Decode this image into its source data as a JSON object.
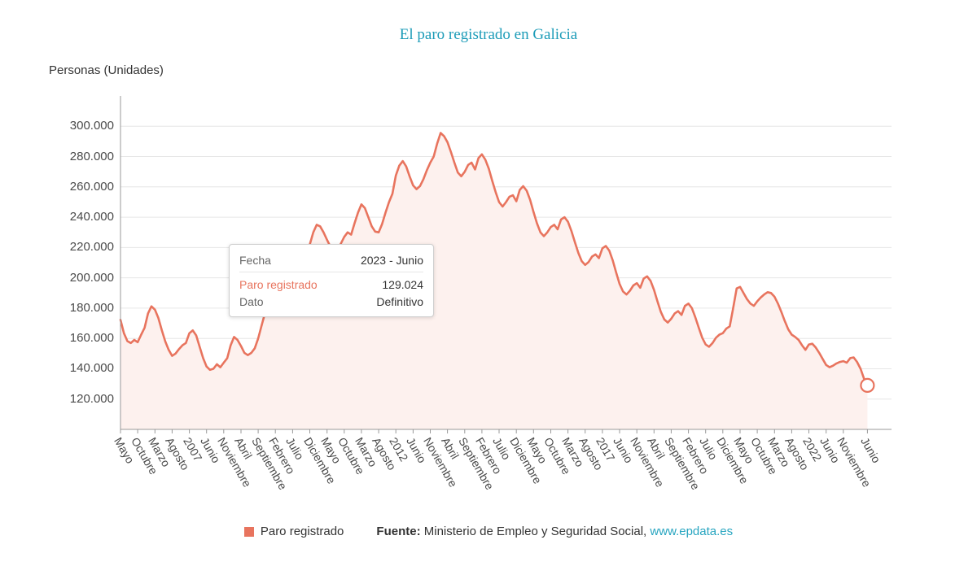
{
  "title": "El paro registrado en Galicia",
  "y_axis_title": "Personas (Unidades)",
  "colors": {
    "line": "#e8745e",
    "fill": "#fdf1ee",
    "grid": "#e6e6e6",
    "axis": "#999999",
    "title": "#1d9cb8",
    "link": "#27a5c0"
  },
  "tooltip": {
    "rows": [
      {
        "label": "Fecha",
        "value": "2023 - Junio"
      },
      {
        "label": "Paro registrado",
        "value": "129.024"
      },
      {
        "label": "Dato",
        "value": "Definitivo"
      }
    ]
  },
  "legend": {
    "series_label": "Paro registrado"
  },
  "footer": {
    "source_label": "Fuente:",
    "source_text": "Ministerio de Empleo y Seguridad Social,",
    "link_text": "www.epdata.es"
  },
  "chart_data": {
    "type": "area",
    "title": "El paro registrado en Galicia",
    "ylabel": "Personas (Unidades)",
    "series_name": "Paro registrado",
    "frequency": "monthly",
    "x_start": "2005-05",
    "x_end": "2023-06",
    "x_domain_months": 224,
    "ylim": [
      100000,
      320000
    ],
    "grid": "horizontal",
    "legend_position": "bottom",
    "y_tick_values": [
      120000,
      140000,
      160000,
      180000,
      200000,
      220000,
      240000,
      260000,
      280000,
      300000
    ],
    "y_tick_labels": [
      "120.000",
      "140.000",
      "160.000",
      "180.000",
      "200.000",
      "220.000",
      "240.000",
      "260.000",
      "280.000",
      "300.000"
    ],
    "x_tick_positions": [
      0,
      5,
      10,
      15,
      20,
      25,
      30,
      35,
      40,
      45,
      50,
      55,
      60,
      65,
      70,
      75,
      80,
      85,
      90,
      95,
      100,
      105,
      110,
      115,
      120,
      125,
      130,
      135,
      140,
      145,
      150,
      155,
      160,
      165,
      170,
      175,
      180,
      185,
      190,
      195,
      200,
      205,
      210,
      217
    ],
    "x_tick_labels": [
      "Mayo",
      "Octubre",
      "Marzo",
      "Agosto",
      "2007",
      "Junio",
      "Noviembre",
      "Abril",
      "Septiembre",
      "Febrero",
      "Julio",
      "Diciembre",
      "Mayo",
      "Octubre",
      "Marzo",
      "Agosto",
      "2012",
      "Junio",
      "Noviembre",
      "Abril",
      "Septiembre",
      "Febrero",
      "Julio",
      "Diciembre",
      "Mayo",
      "Octubre",
      "Marzo",
      "Agosto",
      "2017",
      "Junio",
      "Noviembre",
      "Abril",
      "Septiembre",
      "Febrero",
      "Julio",
      "Diciembre",
      "Mayo",
      "Octubre",
      "Marzo",
      "Agosto",
      "2022",
      "Junio",
      "Noviembre",
      "Junio"
    ],
    "values": [
      172300,
      163500,
      158200,
      157000,
      159000,
      157500,
      162500,
      167000,
      176500,
      181200,
      179000,
      173500,
      165500,
      158000,
      152500,
      148500,
      150000,
      153000,
      155500,
      157000,
      163500,
      165300,
      162000,
      154500,
      147000,
      141500,
      139300,
      140000,
      143000,
      141000,
      144000,
      147000,
      155500,
      161000,
      159000,
      155000,
      150500,
      149000,
      150500,
      153500,
      160000,
      168500,
      177000,
      185500,
      196000,
      205000,
      209000,
      207500,
      204000,
      200000,
      199000,
      201000,
      206500,
      213000,
      218000,
      222000,
      230000,
      235000,
      234000,
      230000,
      225000,
      220500,
      218000,
      219000,
      222500,
      227000,
      230000,
      228500,
      236000,
      243000,
      248500,
      246000,
      240000,
      234000,
      230500,
      230000,
      235500,
      243000,
      250000,
      255500,
      267500,
      274000,
      277000,
      273500,
      267000,
      261000,
      258500,
      260500,
      265000,
      271000,
      276000,
      280000,
      288500,
      295600,
      293500,
      289500,
      283000,
      276000,
      269500,
      267000,
      270000,
      274500,
      276000,
      271500,
      279000,
      281500,
      278000,
      272000,
      264000,
      256500,
      250000,
      247000,
      250000,
      253500,
      254500,
      250500,
      258000,
      260500,
      257500,
      251500,
      243500,
      236000,
      230000,
      227500,
      230000,
      233500,
      235000,
      232000,
      238500,
      240000,
      237000,
      231000,
      223500,
      216500,
      211000,
      208500,
      210500,
      214000,
      215500,
      213000,
      219500,
      221000,
      218000,
      211500,
      203500,
      196000,
      191000,
      189000,
      191500,
      195000,
      196500,
      193500,
      199500,
      201000,
      198000,
      192000,
      184500,
      177500,
      172500,
      170500,
      173000,
      176500,
      178000,
      175500,
      181500,
      183000,
      180000,
      174000,
      167000,
      160500,
      156000,
      154500,
      157000,
      160500,
      162500,
      163500,
      166500,
      168000,
      180000,
      193000,
      194000,
      190000,
      186000,
      183000,
      181500,
      184500,
      187000,
      189000,
      190500,
      190000,
      187500,
      183000,
      177500,
      171500,
      166000,
      162500,
      161000,
      159000,
      155500,
      152500,
      156000,
      156500,
      154000,
      150500,
      146500,
      142500,
      141000,
      142000,
      143500,
      144500,
      145000,
      144000,
      147000,
      147500,
      144500,
      140000,
      133500,
      129024
    ],
    "highlight_last_point": {
      "x_label": "2023 - Junio",
      "value": 129024,
      "status": "Definitivo"
    }
  }
}
